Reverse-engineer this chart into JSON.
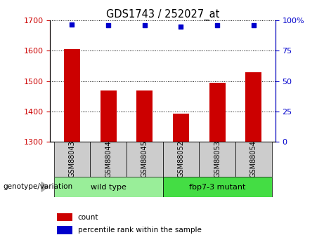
{
  "title": "GDS1743 / 252027_at",
  "categories": [
    "GSM88043",
    "GSM88044",
    "GSM88045",
    "GSM88052",
    "GSM88053",
    "GSM88054"
  ],
  "bar_values": [
    1605,
    1470,
    1468,
    1393,
    1495,
    1530
  ],
  "percentile_values": [
    97,
    96,
    96,
    95,
    96,
    96
  ],
  "ylim_left": [
    1300,
    1700
  ],
  "ylim_right": [
    0,
    100
  ],
  "yticks_left": [
    1300,
    1400,
    1500,
    1600,
    1700
  ],
  "yticks_right": [
    0,
    25,
    50,
    75,
    100
  ],
  "bar_color": "#cc0000",
  "dot_color": "#0000cc",
  "groups": [
    {
      "label": "wild type",
      "indices": [
        0,
        1,
        2
      ],
      "color": "#99ee99"
    },
    {
      "label": "fbp7-3 mutant",
      "indices": [
        3,
        4,
        5
      ],
      "color": "#44dd44"
    }
  ],
  "group_label": "genotype/variation",
  "legend_items": [
    {
      "label": "count",
      "color": "#cc0000"
    },
    {
      "label": "percentile rank within the sample",
      "color": "#0000cc"
    }
  ],
  "tick_label_color_left": "#cc0000",
  "tick_label_color_right": "#0000cc"
}
